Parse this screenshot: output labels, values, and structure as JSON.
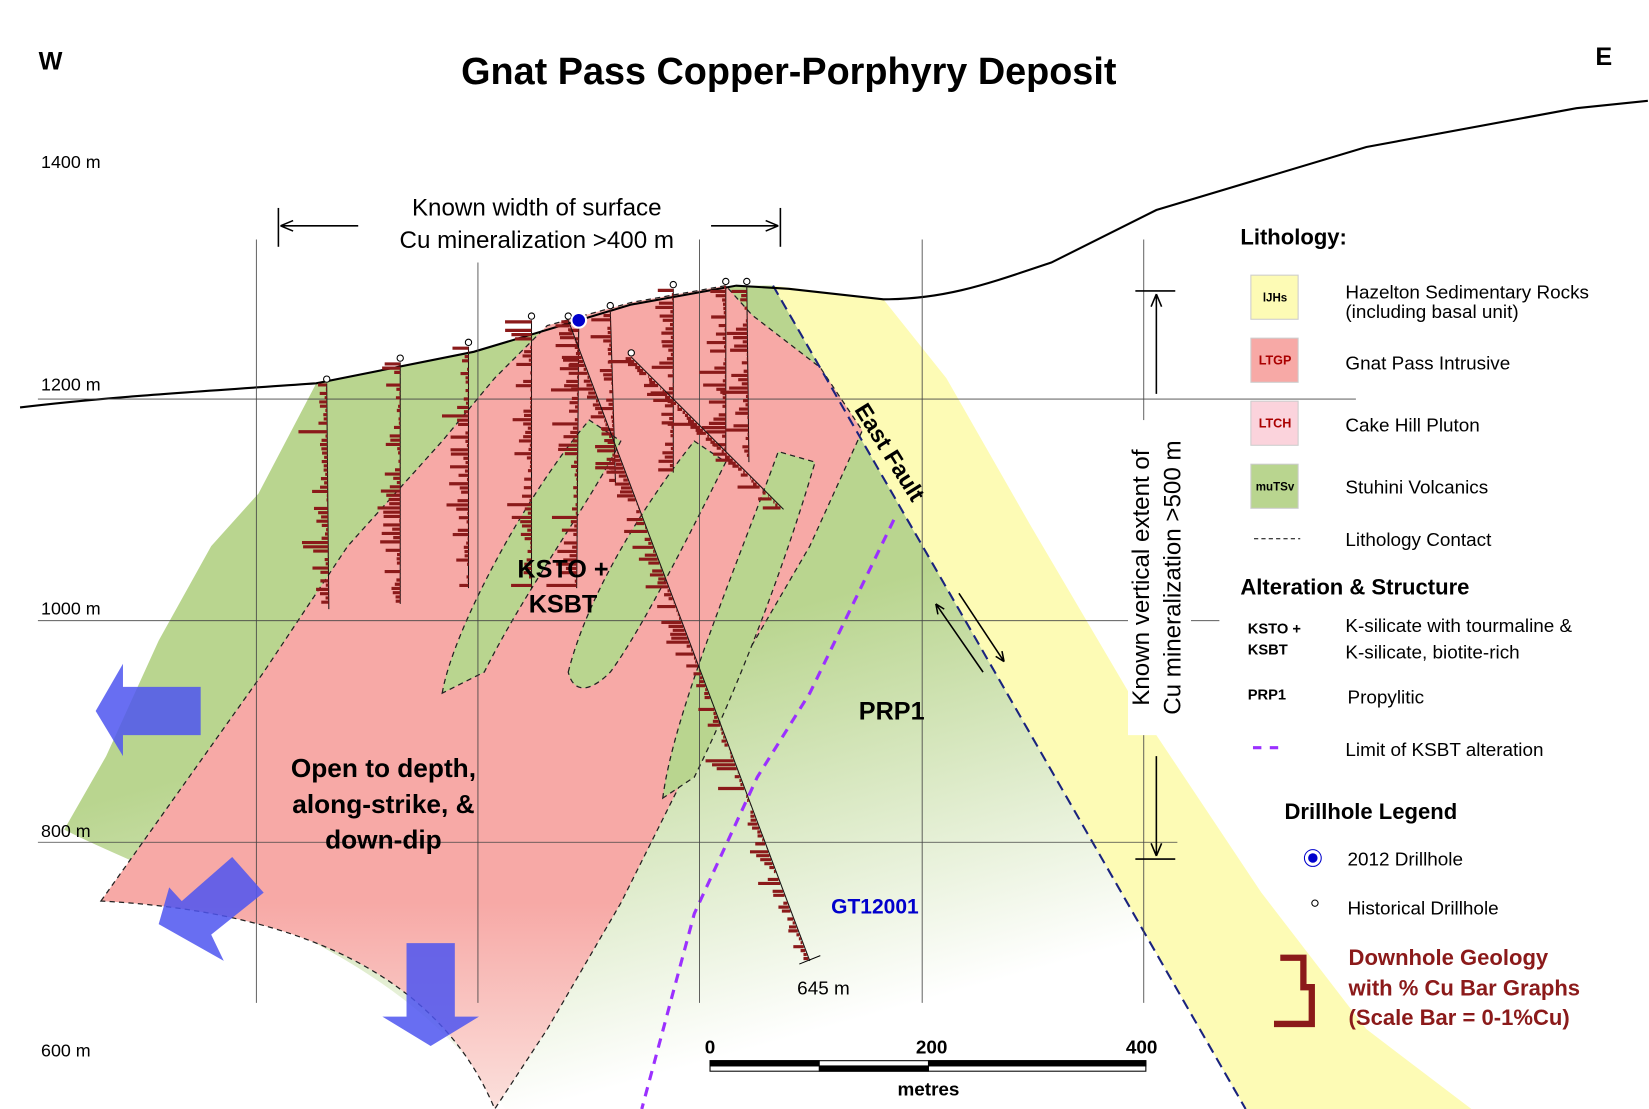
{
  "title": "Gnat Pass Copper-Porphyry Deposit",
  "directions": {
    "west": "W",
    "east": "E"
  },
  "elevation_labels": [
    "1400 m",
    "1200 m",
    "1000 m",
    "800 m",
    "600 m"
  ],
  "annotations": {
    "surface_width": [
      "Known width of surface",
      "Cu mineralization >400 m"
    ],
    "vertical_extent": [
      "Known vertical extent of",
      "Cu mineralization >500 m"
    ],
    "east_fault": "East Fault",
    "ksto": [
      "KSTO +",
      "KSBT"
    ],
    "prp1": "PRP1",
    "open": [
      "Open to depth,",
      "along-strike, &",
      "down-dip"
    ],
    "drillhole": "GT12001",
    "depth": "645 m"
  },
  "scale_bar": {
    "ticks": [
      "0",
      "200",
      "400"
    ],
    "unit": "metres"
  },
  "legend": {
    "lithology_title": "Lithology:",
    "lithology": [
      {
        "code": "lJHs",
        "label": [
          "Hazelton Sedimentary Rocks",
          "(including basal unit)"
        ]
      },
      {
        "code": "LTGP",
        "label": [
          "Gnat Pass Intrusive"
        ]
      },
      {
        "code": "LTCH",
        "label": [
          "Cake Hill Pluton"
        ]
      },
      {
        "code": "muTSv",
        "label": [
          "Stuhini Volcanics"
        ]
      }
    ],
    "contact": "Lithology Contact",
    "alteration_title": "Alteration & Structure",
    "alteration": [
      {
        "code": [
          "KSTO +",
          "KSBT"
        ],
        "label": [
          "K-silicate with tourmaline &",
          "K-silicate, biotite-rich"
        ]
      },
      {
        "code": [
          "PRP1"
        ],
        "label": [
          "Propylitic"
        ]
      }
    ],
    "ksbt_limit": "Limit of KSBT alteration",
    "drillhole_title": "Drillhole Legend",
    "drillholes": [
      "2012 Drillhole",
      "Historical Drillhole"
    ],
    "downhole": [
      "Downhole Geology",
      "with % Cu Bar Graphs",
      "(Scale Bar = 0-1%Cu)"
    ]
  }
}
